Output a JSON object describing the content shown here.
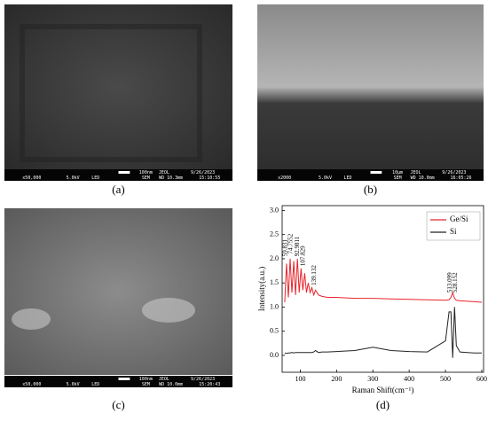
{
  "panels": [
    {
      "label": "(a)",
      "info": [
        "x50,000",
        "5.0kV",
        "LED",
        "100nm",
        "JEOL",
        "9/26/2023",
        "SEM",
        "WD 10.3mm",
        "15:10:55"
      ]
    },
    {
      "label": "(b)",
      "info": [
        "x2000",
        "5.0kV",
        "LED",
        "10μm",
        "JEOL",
        "9/26/2023",
        "SEM",
        "WD 10.0mm",
        "16:05:26"
      ]
    },
    {
      "label": "(c)",
      "info": [
        "x50,000",
        "5.0kV",
        "LED",
        "100nm",
        "JEOL",
        "9/26/2023",
        "SEM",
        "WD 10.0mm",
        "15:20:43"
      ]
    }
  ],
  "chart_data": {
    "type": "line",
    "label": "(d)",
    "x_label": "Raman Shift(cm⁻¹)",
    "y_label": "Intensity(a.u.)",
    "x": [
      57,
      62,
      67,
      72,
      77,
      82,
      87,
      92,
      97,
      102,
      107,
      112,
      117,
      122,
      127,
      132,
      137,
      142,
      150,
      160,
      175,
      200,
      250,
      300,
      350,
      400,
      450,
      500,
      510,
      515,
      520,
      525,
      530,
      540,
      560,
      580,
      600
    ],
    "series": [
      {
        "name": "Ge/Si",
        "color": "#e8242c",
        "values": [
          1.1,
          1.9,
          1.2,
          2.0,
          1.3,
          1.95,
          1.25,
          2.0,
          1.3,
          1.8,
          1.35,
          1.7,
          1.3,
          1.5,
          1.3,
          1.4,
          1.25,
          1.35,
          1.25,
          1.22,
          1.2,
          1.2,
          1.18,
          1.18,
          1.17,
          1.16,
          1.15,
          1.14,
          1.15,
          1.2,
          1.3,
          1.18,
          1.14,
          1.13,
          1.12,
          1.11,
          1.1
        ]
      },
      {
        "name": "Si",
        "color": "#222222",
        "values": [
          0.05,
          0.04,
          0.05,
          0.05,
          0.06,
          0.05,
          0.06,
          0.06,
          0.06,
          0.06,
          0.06,
          0.06,
          0.06,
          0.06,
          0.06,
          0.06,
          0.07,
          0.1,
          0.06,
          0.07,
          0.07,
          0.08,
          0.1,
          0.17,
          0.1,
          0.08,
          0.07,
          0.3,
          0.9,
          0.9,
          -0.05,
          1.0,
          0.2,
          0.07,
          0.06,
          0.05,
          0.05
        ]
      }
    ],
    "annotations": [
      {
        "x": 59.831,
        "y": 2.05,
        "label": "59.831"
      },
      {
        "x": 74.7552,
        "y": 2.1,
        "label": "74.7552"
      },
      {
        "x": 92.9811,
        "y": 2.05,
        "label": "92.9811"
      },
      {
        "x": 107.829,
        "y": 1.85,
        "label": "107.829"
      },
      {
        "x": 139.132,
        "y": 1.45,
        "label": "139.132"
      },
      {
        "x": 513.099,
        "y": 1.3,
        "label": "513.099"
      },
      {
        "x": 528.152,
        "y": 1.3,
        "label": "528.152"
      }
    ],
    "xlim": [
      50,
      605
    ],
    "ylim": [
      -0.35,
      3.1
    ],
    "xticks": [
      100,
      200,
      300,
      400,
      500,
      600
    ],
    "yticks": [
      {
        "value": 0,
        "label": "0.0"
      },
      0.5,
      {
        "value": 1,
        "label": "1.0"
      },
      1.5,
      {
        "value": 2,
        "label": "2.0"
      },
      2.5,
      {
        "value": 3,
        "label": "3.0"
      }
    ],
    "legend": "upper right"
  }
}
